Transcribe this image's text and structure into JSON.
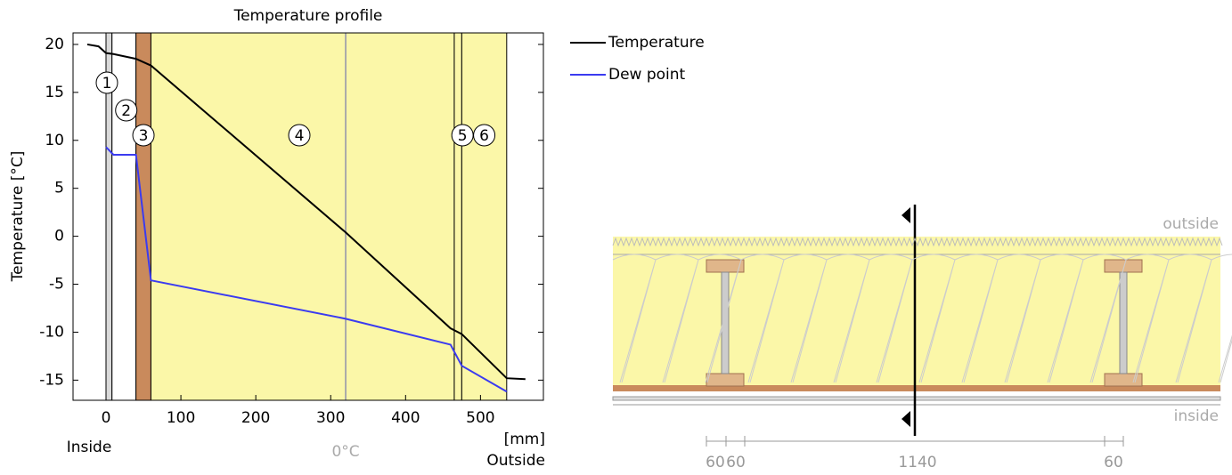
{
  "chart_data": {
    "type": "line",
    "title": "Temperature profile",
    "y_label": "Temperature  [°C]",
    "x_unit": "[mm]",
    "inside_label": "Inside",
    "outside_label": "Outside",
    "zero_label": "0°C",
    "zero_x": 320,
    "xlim": [
      -44,
      584
    ],
    "ylim": [
      -17.1,
      21.2
    ],
    "xticks": [
      0,
      100,
      200,
      300,
      400,
      500
    ],
    "yticks": [
      20,
      15,
      10,
      5,
      0,
      -5,
      -10,
      -15
    ],
    "layers": [
      {
        "label": "1",
        "from": 0,
        "to": 8,
        "color": "#d9d9d9"
      },
      {
        "label": "2",
        "from": 8,
        "to": 40,
        "color": "#ffffff"
      },
      {
        "label": "3",
        "from": 40,
        "to": 60,
        "color": "#c98a5c"
      },
      {
        "label": "4",
        "from": 60,
        "to": 465,
        "color": "#fbf7a8"
      },
      {
        "label": "5",
        "from": 465,
        "to": 475,
        "color": "#fbf7a8"
      },
      {
        "label": "6",
        "from": 475,
        "to": 535,
        "color": "#fbf7a8"
      }
    ],
    "series": [
      {
        "name": "Temperature",
        "color": "#000000",
        "x": [
          -25,
          -10,
          0,
          10,
          40,
          60,
          320,
          460,
          475,
          535,
          560
        ],
        "values": [
          20,
          19.8,
          19.1,
          19.0,
          18.5,
          17.8,
          0.4,
          -9.6,
          -10.2,
          -14.8,
          -14.9
        ]
      },
      {
        "name": "Dew point",
        "color": "#3b3bf0",
        "x": [
          0,
          10,
          40,
          60,
          320,
          460,
          475,
          535
        ],
        "values": [
          9.3,
          8.5,
          8.5,
          -4.6,
          -8.6,
          -11.3,
          -13.5,
          -16.2
        ]
      }
    ]
  },
  "section": {
    "outside": "outside",
    "inside": "inside",
    "dimensions": [
      "60",
      "60",
      "1140",
      "60"
    ]
  }
}
